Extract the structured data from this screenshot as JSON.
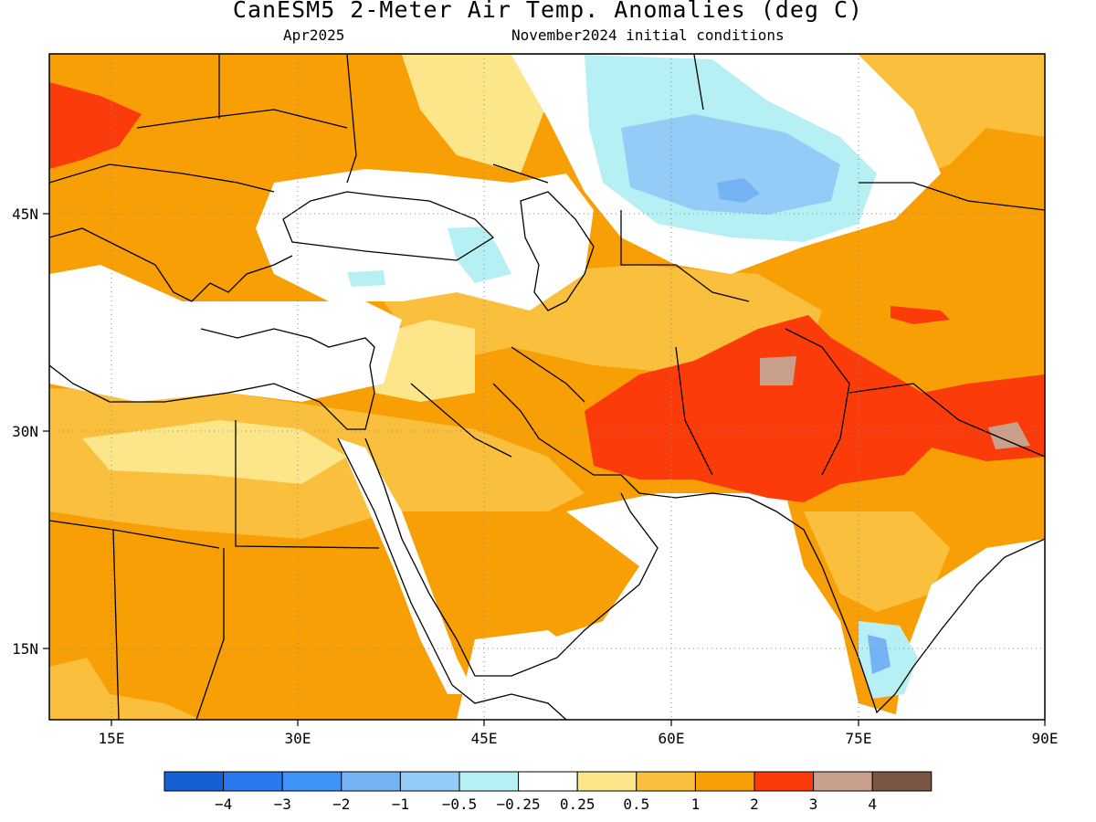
{
  "title": "CanESM5 2-Meter Air Temp. Anomalies (deg C)",
  "subtitle_left": "Apr2025",
  "subtitle_right": "November2024 initial conditions",
  "map": {
    "lon_range": [
      10,
      90
    ],
    "lat_range": [
      10,
      56
    ],
    "lon_ticks": [
      {
        "value": 15,
        "label": "15E"
      },
      {
        "value": 30,
        "label": "30E"
      },
      {
        "value": 45,
        "label": "45E"
      },
      {
        "value": 60,
        "label": "60E"
      },
      {
        "value": 75,
        "label": "75E"
      },
      {
        "value": 90,
        "label": "90E"
      }
    ],
    "lat_ticks": [
      {
        "value": 45,
        "label": "45N"
      },
      {
        "value": 30,
        "label": "30N"
      },
      {
        "value": 15,
        "label": "15N"
      }
    ],
    "gridlines": "dotted"
  },
  "colorbar": {
    "colors": [
      "#1560d4",
      "#2a78ee",
      "#3f93f5",
      "#74b4f5",
      "#94ccf7",
      "#b6f0f4",
      "#ffffff",
      "#fde68a",
      "#fbbf3e",
      "#f89f06",
      "#fb3b0a",
      "#c9a08c",
      "#7a5544"
    ],
    "labels": [
      "−4",
      "−3",
      "−2",
      "−1",
      "−0.5",
      "−0.25",
      "0.25",
      "0.5",
      "1",
      "2",
      "3",
      "4"
    ]
  }
}
